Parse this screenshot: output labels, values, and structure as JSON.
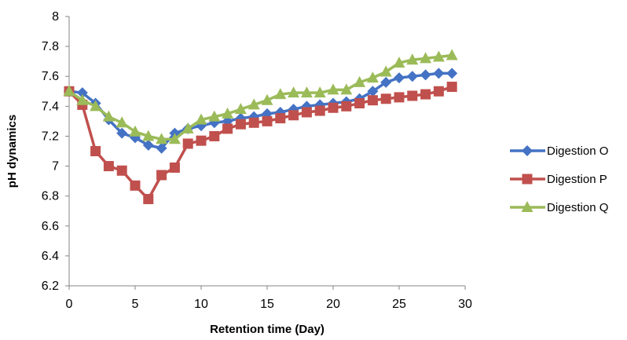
{
  "chart_data": {
    "type": "line",
    "xlabel": "Retention time (Day)",
    "ylabel": "pH dynamics",
    "xlim": [
      0,
      30
    ],
    "ylim": [
      6.2,
      8
    ],
    "xticks": [
      "0",
      "5",
      "10",
      "15",
      "20",
      "25",
      "30"
    ],
    "yticks": [
      "6.2",
      "6.4",
      "6.6",
      "6.8",
      "7",
      "7.2",
      "7.4",
      "7.6",
      "7.8",
      "8"
    ],
    "grid": false,
    "legend": "right",
    "x": [
      0,
      1,
      2,
      3,
      4,
      5,
      6,
      7,
      8,
      9,
      10,
      11,
      12,
      13,
      14,
      15,
      16,
      17,
      18,
      19,
      20,
      21,
      22,
      23,
      24,
      25,
      26,
      27,
      28,
      29
    ],
    "series": [
      {
        "name": "Digestion O",
        "color": "#4472C4",
        "marker": "diamond",
        "values": [
          7.5,
          7.49,
          7.42,
          7.31,
          7.22,
          7.19,
          7.14,
          7.12,
          7.22,
          7.25,
          7.27,
          7.29,
          7.3,
          7.32,
          7.33,
          7.35,
          7.36,
          7.38,
          7.4,
          7.41,
          7.42,
          7.43,
          7.45,
          7.5,
          7.56,
          7.59,
          7.6,
          7.61,
          7.62,
          7.62
        ]
      },
      {
        "name": "Digestion P",
        "color": "#C0504D",
        "marker": "square",
        "values": [
          7.5,
          7.41,
          7.1,
          7.0,
          6.97,
          6.87,
          6.78,
          6.94,
          6.99,
          7.15,
          7.17,
          7.2,
          7.25,
          7.28,
          7.29,
          7.3,
          7.32,
          7.34,
          7.36,
          7.37,
          7.39,
          7.4,
          7.42,
          7.44,
          7.45,
          7.46,
          7.47,
          7.48,
          7.5,
          7.53
        ]
      },
      {
        "name": "Digestion Q",
        "color": "#9BBB59",
        "marker": "triangle",
        "values": [
          7.5,
          7.44,
          7.4,
          7.33,
          7.29,
          7.23,
          7.2,
          7.18,
          7.18,
          7.25,
          7.31,
          7.33,
          7.35,
          7.38,
          7.41,
          7.44,
          7.48,
          7.49,
          7.49,
          7.49,
          7.51,
          7.51,
          7.56,
          7.59,
          7.63,
          7.69,
          7.71,
          7.72,
          7.73,
          7.74
        ]
      }
    ]
  }
}
